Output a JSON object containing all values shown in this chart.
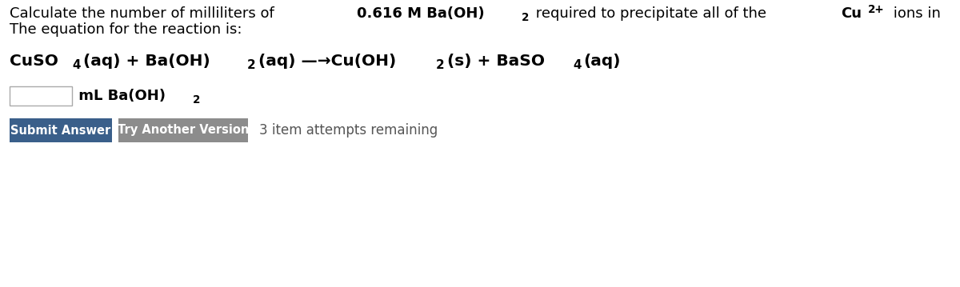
{
  "bg_color": "#ffffff",
  "text_color": "#000000",
  "btn1_color": "#3a5f8a",
  "btn2_color": "#8c8c8c",
  "remaining_text": "3 item attempts remaining",
  "btn1_text": "Submit Answer",
  "btn2_text": "Try Another Version",
  "fontsize": 13,
  "eq_fontsize": 14.5
}
